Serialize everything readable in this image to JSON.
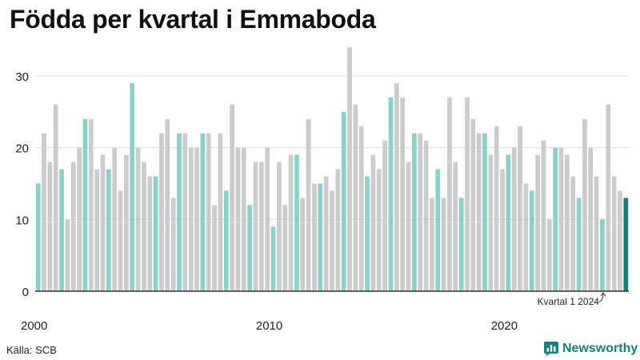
{
  "title": "Födda per kvartal i Emmaboda",
  "source": "Källa: SCB",
  "brand": {
    "name": "Newsworthy",
    "icon": "bar-chart-icon"
  },
  "colors": {
    "highlight": "#88d3c9",
    "regular": "#cccccc",
    "latest": "#15807a",
    "grid": "#dddddd",
    "brand": "#16807a"
  },
  "chart_data": {
    "type": "bar",
    "title": "Födda per kvartal i Emmaboda",
    "xlabel": "",
    "ylabel": "",
    "ylim": [
      0,
      35
    ],
    "yticks": [
      0,
      10,
      20,
      30
    ],
    "xtick_labels": [
      {
        "label": "2000",
        "index": 0
      },
      {
        "label": "2010",
        "index": 40
      },
      {
        "label": "2020",
        "index": 80
      }
    ],
    "grid": true,
    "start": {
      "year": 2000,
      "quarter": 1
    },
    "highlight": "quarter 1 of each year",
    "annotation": {
      "text": "Kvartal 1 2024",
      "index": 96
    },
    "values": [
      15,
      22,
      18,
      26,
      17,
      10,
      18,
      20,
      24,
      24,
      17,
      19,
      17,
      20,
      14,
      19,
      29,
      20,
      18,
      16,
      16,
      22,
      24,
      13,
      22,
      22,
      20,
      20,
      22,
      22,
      12,
      22,
      14,
      26,
      20,
      20,
      12,
      18,
      18,
      20,
      9,
      18,
      12,
      19,
      19,
      13,
      24,
      15,
      15,
      16,
      14,
      17,
      25,
      34,
      26,
      23,
      16,
      19,
      17,
      21,
      27,
      29,
      27,
      18,
      22,
      22,
      21,
      13,
      17,
      13,
      27,
      18,
      13,
      27,
      24,
      22,
      22,
      19,
      23,
      17,
      19,
      20,
      23,
      15,
      14,
      19,
      21,
      10,
      20,
      20,
      19,
      16,
      13,
      24,
      20,
      16,
      10,
      26,
      16,
      14,
      13
    ]
  }
}
